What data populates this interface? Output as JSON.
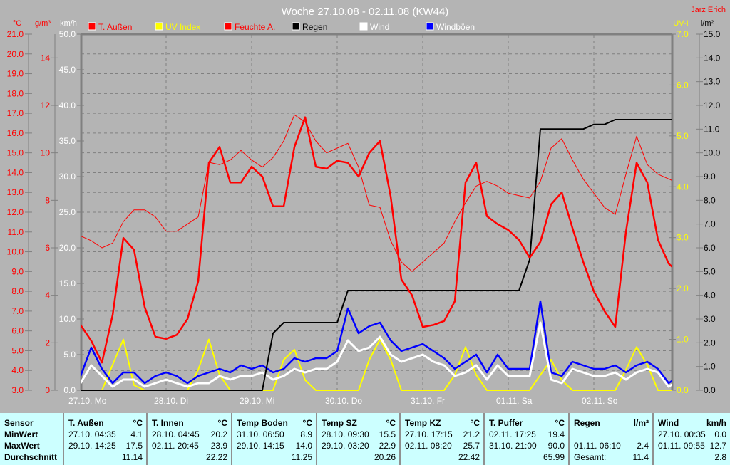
{
  "title": "Woche 27.10.08 - 02.11.08 (KW44)",
  "author": "Jarz Erich",
  "legend": [
    {
      "label": "T. Außen",
      "color": "#ff0000",
      "text_color": "#ff0000"
    },
    {
      "label": "UV Index",
      "color": "#ffff00",
      "text_color": "#ffff00"
    },
    {
      "label": "Feuchte A.",
      "color": "#ff0000",
      "text_color": "#ff0000"
    },
    {
      "label": "Regen",
      "color": "#000000",
      "text_color": "#000000"
    },
    {
      "label": "Wind",
      "color": "#ffffff",
      "text_color": "#ffffff"
    },
    {
      "label": "Windböen",
      "color": "#0000ff",
      "text_color": "#ffffff"
    }
  ],
  "chart_data": {
    "type": "line",
    "title": "Woche 27.10.08 - 02.11.08 (KW44)",
    "grid": true,
    "legend_position": "top",
    "x_tick_labels": [
      "27.10.  Mo",
      "28.10.  Di",
      "29.10.  Mi",
      "30.10.  Do",
      "31.10.  Fr",
      "01.11.  Sa",
      "02.11.  So"
    ],
    "axes": {
      "temp": {
        "unit": "°C",
        "range": [
          3,
          21
        ],
        "color": "#ff0000",
        "ticks": [
          "21.0",
          "20.0",
          "19.0",
          "18.0",
          "17.0",
          "16.0",
          "15.0",
          "14.0",
          "13.0",
          "12.0",
          "11.0",
          "10.0",
          "9.0",
          "8.0",
          "7.0",
          "6.0",
          "5.0",
          "4.0",
          "3.0"
        ]
      },
      "hum": {
        "unit": "g/m³",
        "range": [
          0,
          15
        ],
        "color": "#ff0000",
        "ticks": [
          "14",
          "12",
          "10",
          "8",
          "6",
          "4",
          "2",
          "0"
        ]
      },
      "wind": {
        "unit": "km/h",
        "range": [
          0,
          50
        ],
        "color": "#ffffff",
        "ticks": [
          "50.0",
          "45.0",
          "40.0",
          "35.0",
          "30.0",
          "25.0",
          "20.0",
          "15.0",
          "10.0",
          "5.0",
          "0.0"
        ]
      },
      "uv": {
        "unit": "UV-I",
        "range": [
          0,
          7
        ],
        "color": "#ffff00",
        "ticks": [
          "7.0",
          "6.0",
          "5.0",
          "4.0",
          "3.0",
          "2.0",
          "1.0",
          "0.0"
        ]
      },
      "rain": {
        "unit": "l/m²",
        "range": [
          0,
          15
        ],
        "color": "#000000",
        "ticks": [
          "15.0",
          "14.0",
          "13.0",
          "12.0",
          "11.0",
          "10.0",
          "9.0",
          "8.0",
          "7.0",
          "6.0",
          "5.0",
          "4.0",
          "3.0",
          "2.0",
          "1.0",
          "0.0"
        ]
      }
    },
    "x": [
      "27.10. 00:00",
      "27.10. 03:00",
      "27.10. 06:00",
      "27.10. 09:00",
      "27.10. 12:00",
      "27.10. 15:00",
      "27.10. 18:00",
      "27.10. 21:00",
      "28.10. 00:00",
      "28.10. 03:00",
      "28.10. 06:00",
      "28.10. 09:00",
      "28.10. 12:00",
      "28.10. 15:00",
      "28.10. 18:00",
      "28.10. 21:00",
      "29.10. 00:00",
      "29.10. 03:00",
      "29.10. 06:00",
      "29.10. 09:00",
      "29.10. 12:00",
      "29.10. 15:00",
      "29.10. 18:00",
      "29.10. 21:00",
      "30.10. 00:00",
      "30.10. 03:00",
      "30.10. 06:00",
      "30.10. 09:00",
      "30.10. 12:00",
      "30.10. 15:00",
      "30.10. 18:00",
      "30.10. 21:00",
      "31.10. 00:00",
      "31.10. 03:00",
      "31.10. 06:00",
      "31.10. 09:00",
      "31.10. 12:00",
      "31.10. 15:00",
      "31.10. 18:00",
      "31.10. 21:00",
      "01.11. 00:00",
      "01.11. 03:00",
      "01.11. 06:00",
      "01.11. 09:00",
      "01.11. 12:00",
      "01.11. 15:00",
      "01.11. 18:00",
      "01.11. 21:00",
      "02.11. 00:00",
      "02.11. 03:00",
      "02.11. 06:00",
      "02.11. 09:00",
      "02.11. 12:00",
      "02.11. 15:00",
      "02.11. 18:00",
      "02.11. 21:00",
      "03.11. 00:00"
    ],
    "series": [
      {
        "name": "Feuchte A.",
        "axis": "hum",
        "color": "#ff0000",
        "width": 1,
        "values": [
          6.5,
          6.3,
          6.0,
          6.2,
          7.1,
          7.6,
          7.6,
          7.3,
          6.7,
          6.7,
          7.0,
          7.3,
          9.6,
          9.5,
          9.7,
          10.1,
          9.7,
          9.4,
          9.8,
          10.5,
          11.6,
          11.3,
          10.5,
          10.0,
          10.2,
          10.4,
          9.4,
          7.8,
          7.7,
          6.3,
          5.4,
          5.0,
          5.4,
          5.8,
          6.2,
          7.1,
          7.9,
          8.6,
          8.8,
          8.6,
          8.3,
          8.2,
          8.1,
          8.8,
          10.2,
          10.6,
          9.7,
          8.9,
          8.3,
          7.7,
          7.4,
          9.1,
          10.7,
          9.5,
          9.1,
          8.9,
          8.7
        ]
      },
      {
        "name": "UV Index",
        "axis": "uv",
        "color": "#ffff00",
        "width": 2,
        "values": [
          0,
          0,
          0,
          0.5,
          1.0,
          0.1,
          0,
          0,
          0,
          0,
          0,
          0.4,
          1.0,
          0.3,
          0,
          0,
          0,
          0,
          0,
          0.6,
          0.8,
          0.2,
          0,
          0,
          0,
          0,
          0,
          0.6,
          1.0,
          0.6,
          0,
          0,
          0,
          0,
          0,
          0.3,
          0.85,
          0.3,
          0,
          0,
          0,
          0,
          0,
          0.3,
          0.6,
          0.2,
          0,
          0,
          0,
          0,
          0,
          0.4,
          0.85,
          0.5,
          0,
          0,
          0
        ]
      },
      {
        "name": "Windböen",
        "axis": "wind",
        "color": "#0000ff",
        "width": 2.5,
        "values": [
          2,
          6,
          3,
          1,
          2.5,
          2.5,
          1,
          2,
          2.5,
          2,
          1,
          2,
          2.5,
          3,
          2.5,
          3.5,
          3,
          3.5,
          2.5,
          3,
          4.5,
          4,
          4.5,
          4.5,
          5.5,
          11.5,
          8,
          9,
          9.5,
          7,
          5.5,
          6,
          6.5,
          5.5,
          4.5,
          3,
          4,
          5,
          2.5,
          5,
          3,
          3,
          3,
          12.5,
          2.5,
          2,
          4,
          3.5,
          3,
          3,
          3.5,
          2.5,
          3.5,
          4,
          3,
          1,
          2
        ]
      },
      {
        "name": "Wind",
        "axis": "wind",
        "color": "#ffffff",
        "width": 3,
        "values": [
          1,
          3.5,
          2,
          0.5,
          1.5,
          1.5,
          0.5,
          1,
          1.5,
          1,
          0.5,
          1,
          1,
          2,
          1.5,
          2,
          2,
          2.5,
          1.5,
          2,
          3,
          2.5,
          3,
          3,
          4,
          7,
          5.5,
          6,
          7.5,
          5,
          4,
          4.5,
          5,
          4,
          3.5,
          2,
          2.5,
          3.5,
          1.5,
          3.5,
          2,
          2,
          2,
          9.5,
          1.5,
          1,
          3,
          2.5,
          2,
          2,
          2.5,
          1.5,
          2.5,
          3,
          2.5,
          0.5,
          1.5
        ]
      },
      {
        "name": "Regen",
        "axis": "rain",
        "color": "#000000",
        "width": 2,
        "values": [
          0,
          0,
          0,
          0,
          0,
          0,
          0,
          0,
          0,
          0,
          0,
          0,
          0,
          0,
          0,
          0,
          0,
          0,
          2.4,
          2.85,
          2.85,
          2.85,
          2.85,
          2.85,
          2.85,
          4.2,
          4.2,
          4.2,
          4.2,
          4.2,
          4.2,
          4.2,
          4.2,
          4.2,
          4.2,
          4.2,
          4.2,
          4.2,
          4.2,
          4.2,
          4.2,
          4.2,
          5.5,
          11.0,
          11.0,
          11.0,
          11.0,
          11.0,
          11.2,
          11.2,
          11.4,
          11.4,
          11.4,
          11.4,
          11.4,
          11.4,
          11.4
        ]
      },
      {
        "name": "T. Außen",
        "axis": "temp",
        "color": "#ff0000",
        "width": 2.5,
        "values": [
          6.3,
          5.5,
          4.4,
          6.8,
          10.7,
          10.1,
          7.2,
          5.7,
          5.6,
          5.8,
          6.6,
          8.5,
          14.5,
          15.3,
          13.5,
          13.5,
          14.3,
          13.8,
          12.3,
          12.3,
          15.3,
          16.8,
          14.3,
          14.2,
          14.6,
          14.5,
          13.8,
          15.0,
          15.6,
          12.8,
          8.6,
          7.8,
          6.2,
          6.3,
          6.5,
          7.5,
          13.5,
          14.5,
          11.8,
          11.4,
          11.1,
          10.6,
          9.7,
          10.5,
          12.4,
          13.0,
          11.2,
          9.5,
          8.0,
          7.0,
          6.2,
          11.0,
          14.5,
          13.5,
          10.6,
          9.4,
          8.9
        ]
      }
    ]
  },
  "table": {
    "row_labels": [
      "Sensor",
      "MinWert",
      "MaxWert",
      "Durchschnitt"
    ],
    "columns": [
      {
        "name": "T. Außen",
        "unit": "°C",
        "min_time": "27.10.  04:35",
        "min": "4.1",
        "max_time": "29.10.  14:25",
        "max": "17.5",
        "avg_label": "",
        "avg": "11.14"
      },
      {
        "name": "T. Innen",
        "unit": "°C",
        "min_time": "28.10.  04:45",
        "min": "20.2",
        "max_time": "02.11.  20:45",
        "max": "23.9",
        "avg_label": "",
        "avg": "22.22"
      },
      {
        "name": "Temp Boden",
        "unit": "°C",
        "min_time": "31.10.  06:50",
        "min": "8.9",
        "max_time": "29.10.  14:15",
        "max": "14.0",
        "avg_label": "",
        "avg": "11.25"
      },
      {
        "name": "Temp SZ",
        "unit": "°C",
        "min_time": "28.10.  09:30",
        "min": "15.5",
        "max_time": "29.10.  03:20",
        "max": "22.9",
        "avg_label": "",
        "avg": "20.26"
      },
      {
        "name": "Temp KZ",
        "unit": "°C",
        "min_time": "27.10.  17:15",
        "min": "21.2",
        "max_time": "02.11.  08:20",
        "max": "25.7",
        "avg_label": "",
        "avg": "22.42"
      },
      {
        "name": "T. Puffer",
        "unit": "°C",
        "min_time": "02.11.  17:25",
        "min": "19.4",
        "max_time": "31.10.  21:00",
        "max": "90.0",
        "avg_label": "",
        "avg": "65.99"
      },
      {
        "name": "Regen",
        "unit": "l/m²",
        "min_time": "",
        "min": "",
        "max_time": "01.11.  06:10",
        "max": "2.4",
        "avg_label": "Gesamt:",
        "avg": "11.4"
      },
      {
        "name": "Wind",
        "unit": "km/h",
        "min_time": "27.10.  00:35",
        "min": "0.0",
        "max_time": "01.11.  09:55",
        "max": "12.7",
        "avg_label": "",
        "avg": "2.8"
      }
    ]
  }
}
